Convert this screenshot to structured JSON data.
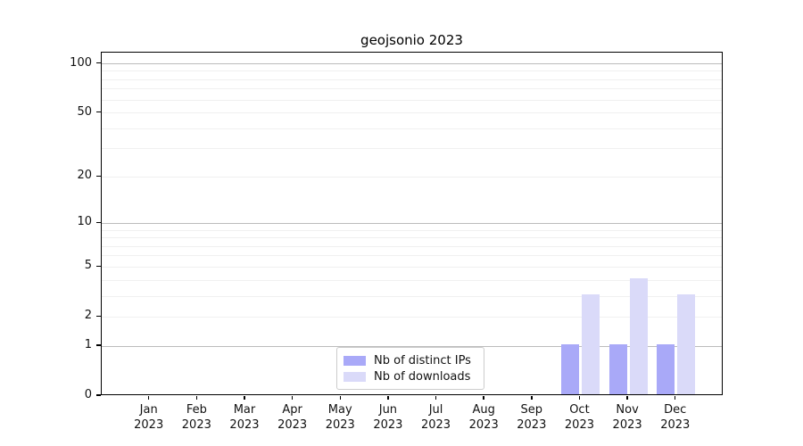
{
  "title": "geojsonio 2023",
  "chart_data": {
    "type": "bar",
    "title": "geojsonio 2023",
    "categories": [
      "Jan",
      "Feb",
      "Mar",
      "Apr",
      "May",
      "Jun",
      "Jul",
      "Aug",
      "Sep",
      "Oct",
      "Nov",
      "Dec"
    ],
    "category_year": "2023",
    "series": [
      {
        "name": "Nb of distinct IPs",
        "color": "#a9a9f8",
        "values": [
          0,
          0,
          0,
          0,
          0,
          0,
          0,
          0,
          0,
          1,
          1,
          1
        ]
      },
      {
        "name": "Nb of downloads",
        "color": "#dadaf9",
        "values": [
          0,
          0,
          0,
          0,
          0,
          0,
          0,
          0,
          0,
          3,
          4,
          3
        ]
      }
    ],
    "yscale": "log1p",
    "ylim": [
      0,
      117
    ],
    "yticks": [
      0,
      1,
      2,
      5,
      10,
      20,
      50,
      100
    ],
    "ytick_labels": [
      "0",
      "1",
      "2",
      "5",
      "10",
      "20",
      "50",
      "100"
    ],
    "grid": {
      "major_values": [
        1,
        10,
        100
      ],
      "minor_values": [
        2,
        3,
        4,
        5,
        6,
        7,
        8,
        9,
        20,
        30,
        40,
        50,
        60,
        70,
        80,
        90
      ],
      "major_color": "#bcbcbc",
      "minor_color": "#f0f0f0"
    },
    "legend_position": "bottom-center",
    "axis_color": "#000000",
    "background_color": "#ffffff"
  }
}
